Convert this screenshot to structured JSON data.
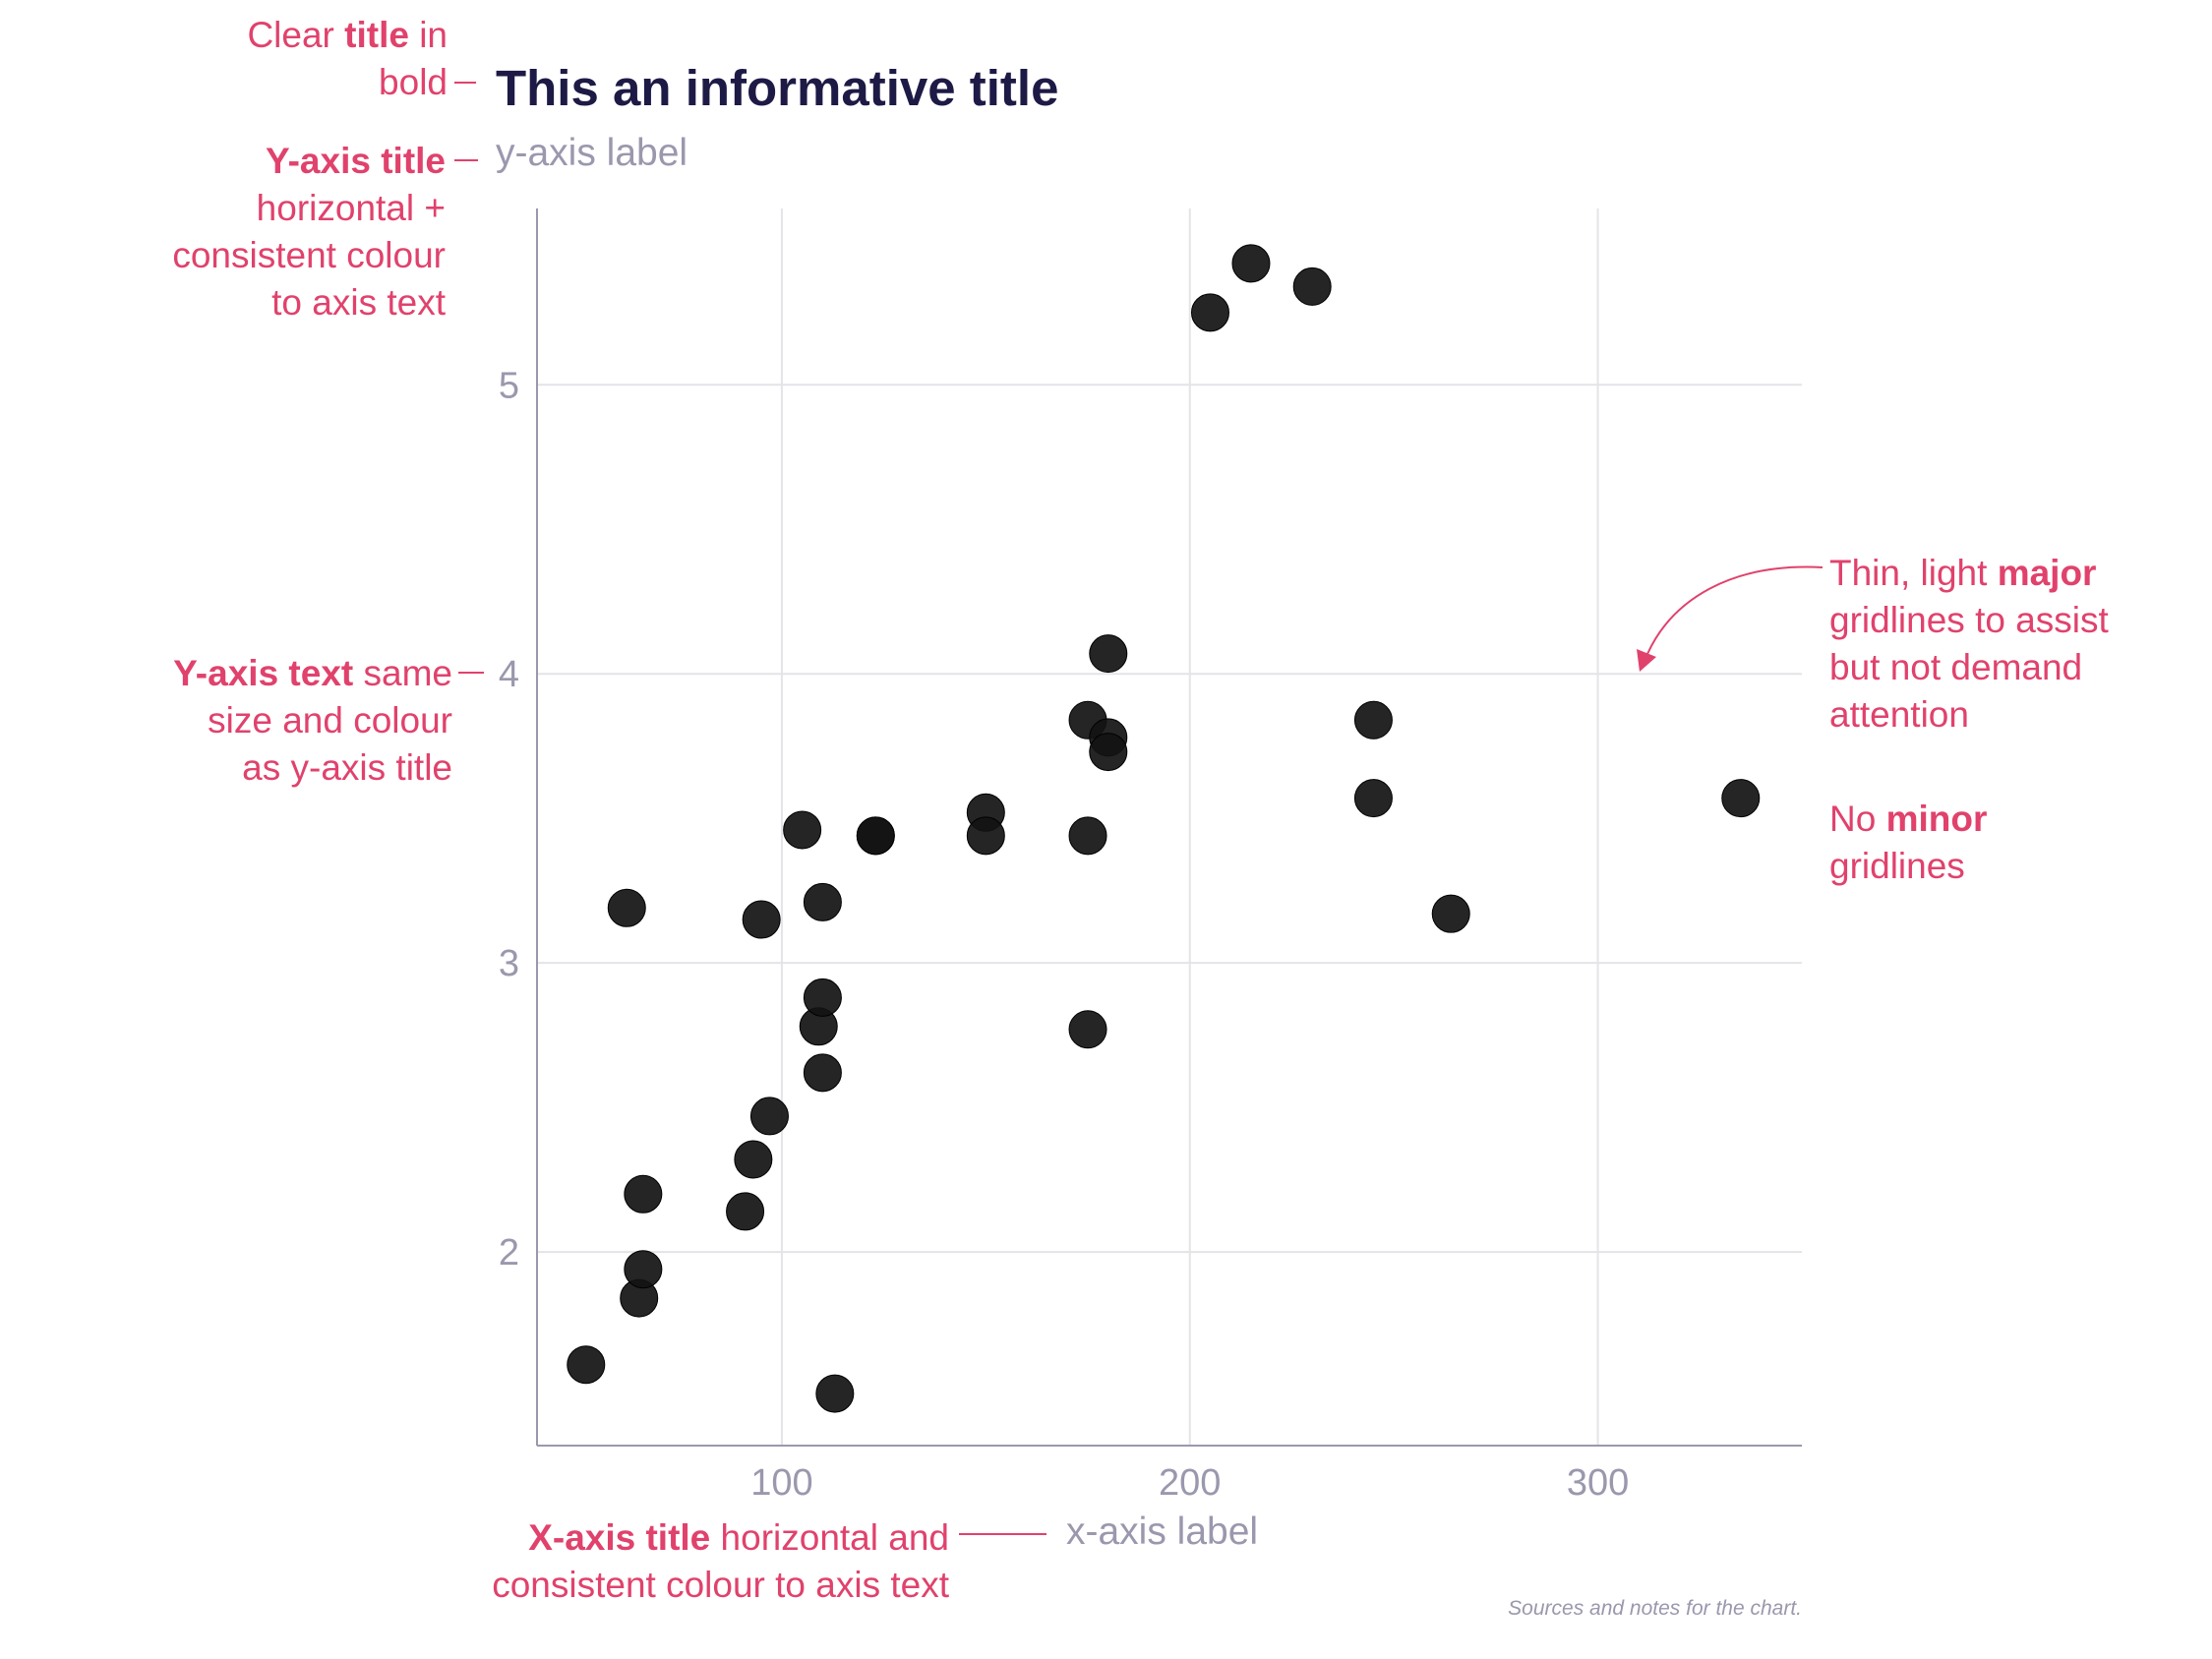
{
  "chart_data": {
    "type": "scatter",
    "title": "This an informative title",
    "xlabel": "x-axis label",
    "ylabel": "y-axis label",
    "caption": "Sources and notes for the chart.",
    "xlim": [
      40,
      350
    ],
    "ylim": [
      1.33,
      5.61
    ],
    "x_ticks": [
      "100",
      "200",
      "300"
    ],
    "y_ticks": [
      "2",
      "3",
      "4",
      "5"
    ],
    "grid": "major only",
    "point_color": "#121212",
    "points": [
      {
        "x": 52,
        "y": 1.61
      },
      {
        "x": 62,
        "y": 3.19
      },
      {
        "x": 65,
        "y": 1.84
      },
      {
        "x": 66,
        "y": 1.94
      },
      {
        "x": 66,
        "y": 2.2
      },
      {
        "x": 91,
        "y": 2.14
      },
      {
        "x": 93,
        "y": 2.32
      },
      {
        "x": 95,
        "y": 3.15
      },
      {
        "x": 97,
        "y": 2.47
      },
      {
        "x": 105,
        "y": 3.46
      },
      {
        "x": 109,
        "y": 2.78
      },
      {
        "x": 110,
        "y": 3.21
      },
      {
        "x": 110,
        "y": 2.88
      },
      {
        "x": 110,
        "y": 2.62
      },
      {
        "x": 113,
        "y": 1.51
      },
      {
        "x": 123,
        "y": 3.44
      },
      {
        "x": 123,
        "y": 3.44
      },
      {
        "x": 150,
        "y": 3.52
      },
      {
        "x": 150,
        "y": 3.44
      },
      {
        "x": 175,
        "y": 3.84
      },
      {
        "x": 175,
        "y": 3.44
      },
      {
        "x": 175,
        "y": 2.77
      },
      {
        "x": 180,
        "y": 4.07
      },
      {
        "x": 180,
        "y": 3.78
      },
      {
        "x": 180,
        "y": 3.73
      },
      {
        "x": 205,
        "y": 5.25
      },
      {
        "x": 215,
        "y": 5.42
      },
      {
        "x": 230,
        "y": 5.34
      },
      {
        "x": 245,
        "y": 3.84
      },
      {
        "x": 245,
        "y": 3.57
      },
      {
        "x": 264,
        "y": 3.17
      },
      {
        "x": 335,
        "y": 3.57
      }
    ]
  },
  "annotations": {
    "title_note": {
      "line1": [
        "Clear ",
        "title",
        " in"
      ],
      "line2": "bold"
    },
    "ytitle_note": {
      "line1": "Y-axis title",
      "line2": "horizontal +",
      "line3": "consistent colour",
      "line4": "to axis text"
    },
    "ytext_note": {
      "line1": [
        "Y-axis text",
        " same"
      ],
      "line2": "size and colour",
      "line3": "as y-axis title"
    },
    "grid_note": {
      "line1": [
        "Thin, light ",
        "major"
      ],
      "line2": "gridlines to assist",
      "line3": "but not demand",
      "line4": "attention"
    },
    "minor_note": {
      "line1": [
        "No ",
        "minor"
      ],
      "line2": "gridlines"
    },
    "xtitle_note": {
      "line1": [
        "X-axis title",
        " horizontal and"
      ],
      "line2": "consistent colour to axis text"
    }
  }
}
